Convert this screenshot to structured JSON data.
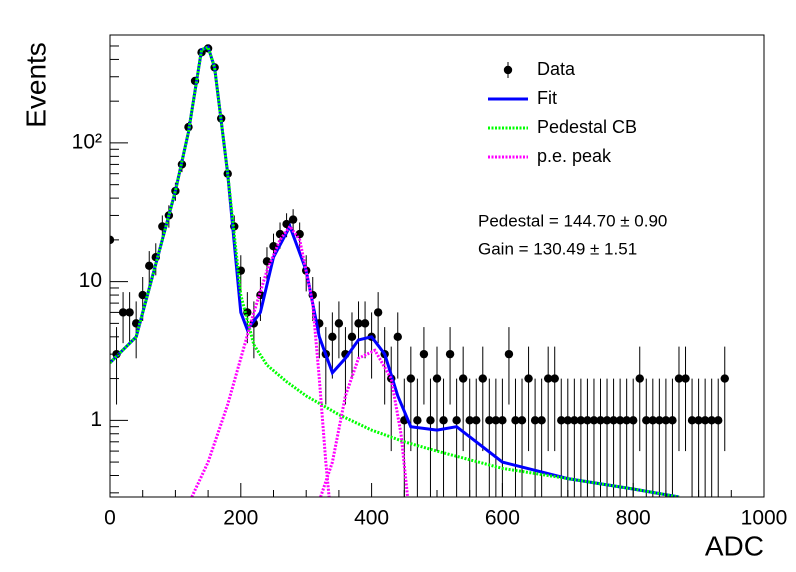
{
  "chart_data": {
    "type": "line",
    "ylabel": "Events",
    "xlabel": "ADC",
    "log_y": true,
    "xlim": [
      0,
      1000
    ],
    "ylim": [
      0.28,
      600
    ],
    "xticks": [
      0,
      200,
      400,
      600,
      800,
      1000
    ],
    "yticks": [
      1,
      10,
      {
        "value": 100,
        "label": "10²"
      }
    ],
    "legend": "upper right",
    "annotations": [
      "Pedestal = 144.70 ± 0.90",
      "Gain = 130.49 ± 1.51"
    ],
    "series": [
      {
        "name": "Data",
        "style": "markers",
        "color": "#000000",
        "x": [
          0,
          10,
          20,
          30,
          40,
          50,
          60,
          70,
          80,
          90,
          100,
          110,
          120,
          130,
          140,
          150,
          160,
          170,
          180,
          190,
          200,
          210,
          220,
          230,
          240,
          250,
          260,
          270,
          280,
          290,
          300,
          310,
          320,
          330,
          340,
          350,
          360,
          370,
          380,
          390,
          400,
          410,
          420,
          430,
          440,
          450,
          460,
          470,
          480,
          490,
          500,
          510,
          520,
          530,
          540,
          550,
          560,
          570,
          580,
          590,
          600,
          610,
          620,
          630,
          640,
          650,
          660,
          670,
          680,
          690,
          700,
          710,
          720,
          730,
          740,
          750,
          760,
          770,
          780,
          790,
          800,
          810,
          820,
          830,
          840,
          850,
          860,
          870,
          880,
          890,
          900,
          910,
          920,
          930,
          940
        ],
        "values": [
          20,
          3,
          6,
          6,
          5,
          8,
          13,
          15,
          25,
          30,
          45,
          70,
          130,
          280,
          450,
          480,
          350,
          150,
          60,
          25,
          12,
          6,
          5,
          8,
          14,
          18,
          22,
          26,
          28,
          22,
          12,
          8,
          5,
          3,
          4,
          5,
          3,
          4,
          5,
          5,
          4,
          6,
          3,
          2,
          4,
          1,
          2,
          1,
          3,
          1,
          2,
          1,
          3,
          1,
          2,
          1,
          1,
          2,
          1,
          1,
          1,
          3,
          1,
          1,
          2,
          1,
          1,
          2,
          2,
          1,
          1,
          1,
          1,
          1,
          1,
          1,
          1,
          1,
          1,
          1,
          1,
          2,
          1,
          1,
          1,
          1,
          1,
          2,
          2,
          1,
          1,
          1,
          1,
          1,
          2
        ],
        "errors": [
          4.5,
          1.7,
          2.4,
          2.4,
          2.2,
          2.8,
          3.6,
          3.9,
          5,
          5.5,
          6.7,
          8.4,
          11.4,
          16.7,
          21.2,
          21.9,
          18.7,
          12.2,
          7.7,
          5,
          3.5,
          2.4,
          2.2,
          2.8,
          3.7,
          4.2,
          4.7,
          5.1,
          5.3,
          4.7,
          3.5,
          2.8,
          2.2,
          1.7,
          2,
          2.2,
          1.7,
          2,
          2.2,
          2.2,
          2,
          2.4,
          1.7,
          1.4,
          2,
          1,
          1.4,
          1,
          1.7,
          1,
          1.4,
          1,
          1.7,
          1,
          1.4,
          1,
          1,
          1.4,
          1,
          1,
          1,
          1.7,
          1,
          1,
          1.4,
          1,
          1,
          1.4,
          1.4,
          1,
          1,
          1,
          1,
          1,
          1,
          1,
          1,
          1,
          1,
          1,
          1,
          1.4,
          1,
          1,
          1,
          1,
          1,
          1.4,
          1.4,
          1,
          1,
          1,
          1,
          1,
          1.4
        ]
      },
      {
        "name": "Fit",
        "style": "solid",
        "color": "#0000ff",
        "x": [
          0,
          40,
          80,
          100,
          120,
          140,
          150,
          160,
          180,
          200,
          210,
          230,
          250,
          275,
          300,
          320,
          340,
          360,
          380,
          400,
          420,
          440,
          460,
          500,
          530,
          560,
          600,
          700,
          800,
          870
        ],
        "values": [
          2.6,
          4,
          20,
          45,
          120,
          470,
          490,
          350,
          60,
          6,
          4.5,
          6,
          15,
          25,
          12,
          4,
          2.2,
          2.8,
          3.8,
          4,
          3,
          1.5,
          0.9,
          0.85,
          0.9,
          0.7,
          0.5,
          0.38,
          0.32,
          0.28
        ]
      },
      {
        "name": "Pedestal CB",
        "style": "dotted",
        "color": "#00ff00",
        "x": [
          0,
          40,
          80,
          100,
          120,
          140,
          150,
          160,
          180,
          200,
          220,
          240,
          270,
          300,
          350,
          400,
          450,
          500,
          600,
          700,
          800,
          870
        ],
        "values": [
          2.6,
          4,
          20,
          45,
          120,
          470,
          490,
          350,
          60,
          8,
          3.5,
          2.5,
          1.9,
          1.5,
          1.1,
          0.85,
          0.7,
          0.6,
          0.45,
          0.38,
          0.32,
          0.28
        ]
      },
      {
        "name": "p.e. peak",
        "style": "dotted",
        "color": "#ff00ff",
        "x": [
          125,
          150,
          180,
          200,
          220,
          240,
          260,
          275,
          290,
          310,
          320,
          330,
          335,
          337,
          322,
          340,
          360,
          380,
          405,
          430,
          445,
          455
        ],
        "values": [
          0.28,
          0.5,
          1.3,
          2.8,
          6,
          12,
          20,
          25,
          20,
          7,
          2,
          0.5,
          0.28,
          null,
          0.28,
          0.5,
          1.5,
          2.8,
          3.2,
          2,
          0.8,
          0.28
        ]
      }
    ]
  }
}
